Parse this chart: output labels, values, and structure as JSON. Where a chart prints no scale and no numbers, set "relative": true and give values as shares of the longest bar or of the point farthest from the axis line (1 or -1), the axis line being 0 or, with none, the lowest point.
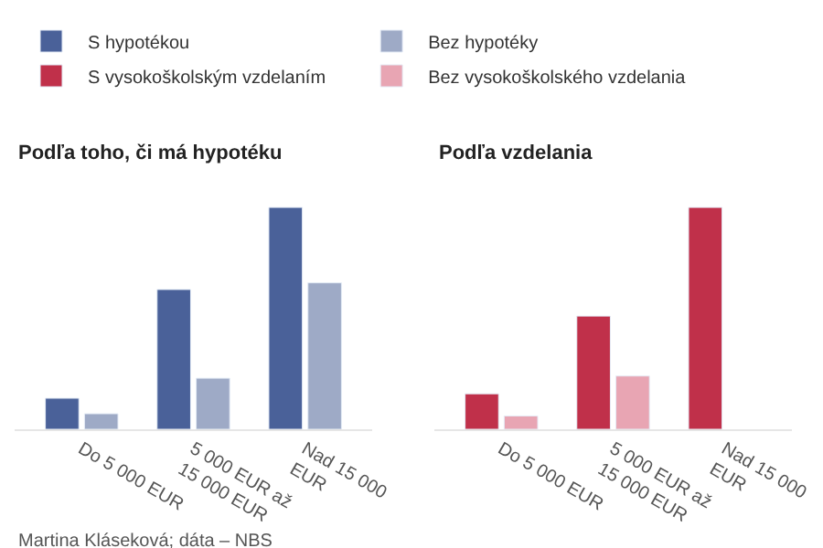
{
  "chart_data": [
    {
      "type": "bar",
      "title": "Podľa toho, či má hypotéku",
      "relative": true,
      "legend": "top",
      "categories": [
        "Do 5 000 EUR",
        "5 000 EUR až 15 000 EUR",
        "Nad 15 000 EUR"
      ],
      "series": [
        {
          "name": "S hypotékou",
          "color": "#4a6199",
          "values": [
            0.14,
            0.63,
            1
          ]
        },
        {
          "name": "Bez hypotéky",
          "color": "#9eaac6",
          "values": [
            0.07,
            0.23,
            0.66
          ]
        }
      ],
      "annotations": [
        "Martina Kláseková; dáta – NBS"
      ]
    },
    {
      "type": "bar",
      "title": "Podľa vzdelania",
      "relative": true,
      "legend": "top",
      "categories": [
        "Do 5 000 EUR",
        "5 000 EUR až 15 000 EUR",
        "Nad 15 000 EUR"
      ],
      "series": [
        {
          "name": "S vysokoškolským vzdelaním",
          "color": "#c0304a",
          "values": [
            0.16,
            0.51,
            1
          ]
        },
        {
          "name": "Bez vysokoškolského vzdelania",
          "color": "#e8a5b3",
          "values": [
            0.06,
            0.24,
            null
          ]
        }
      ]
    }
  ]
}
